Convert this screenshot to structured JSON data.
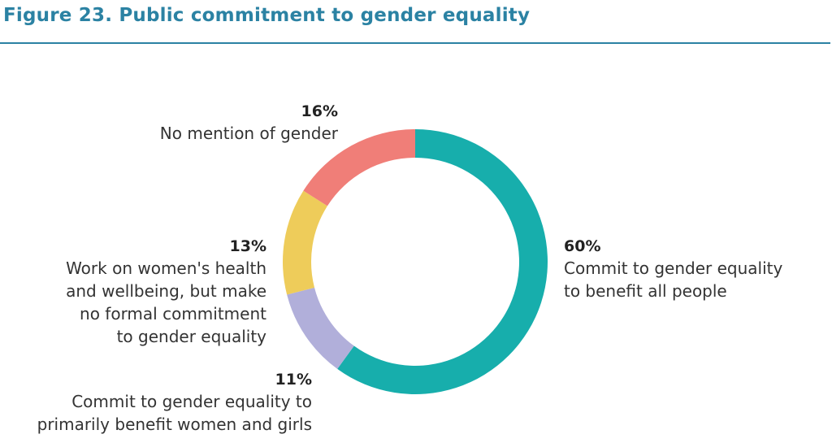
{
  "figure": {
    "title": "Figure 23. Public commitment to gender equality"
  },
  "colors": {
    "title": "#2b82a3",
    "rule": "#2b82a3",
    "text": "#333333"
  },
  "chart_data": {
    "type": "pie",
    "variant": "donut",
    "title": "Figure 23. Public commitment to gender equality",
    "start_angle_deg": 0,
    "direction": "clockwise",
    "slices": [
      {
        "value": 60,
        "pct_label": "60%",
        "label_lines": [
          "Commit to gender equality",
          "to benefit all people"
        ],
        "color": "#17aeac"
      },
      {
        "value": 11,
        "pct_label": "11%",
        "label_lines": [
          "Commit to gender equality to",
          "primarily benefit women and girls"
        ],
        "color": "#b1afda"
      },
      {
        "value": 13,
        "pct_label": "13%",
        "label_lines": [
          "Work on women's health",
          "and wellbeing, but make",
          "no formal commitment",
          "to gender equality"
        ],
        "color": "#eecc5a"
      },
      {
        "value": 16,
        "pct_label": "16%",
        "label_lines": [
          "No mention of gender"
        ],
        "color": "#f07e78"
      }
    ]
  }
}
